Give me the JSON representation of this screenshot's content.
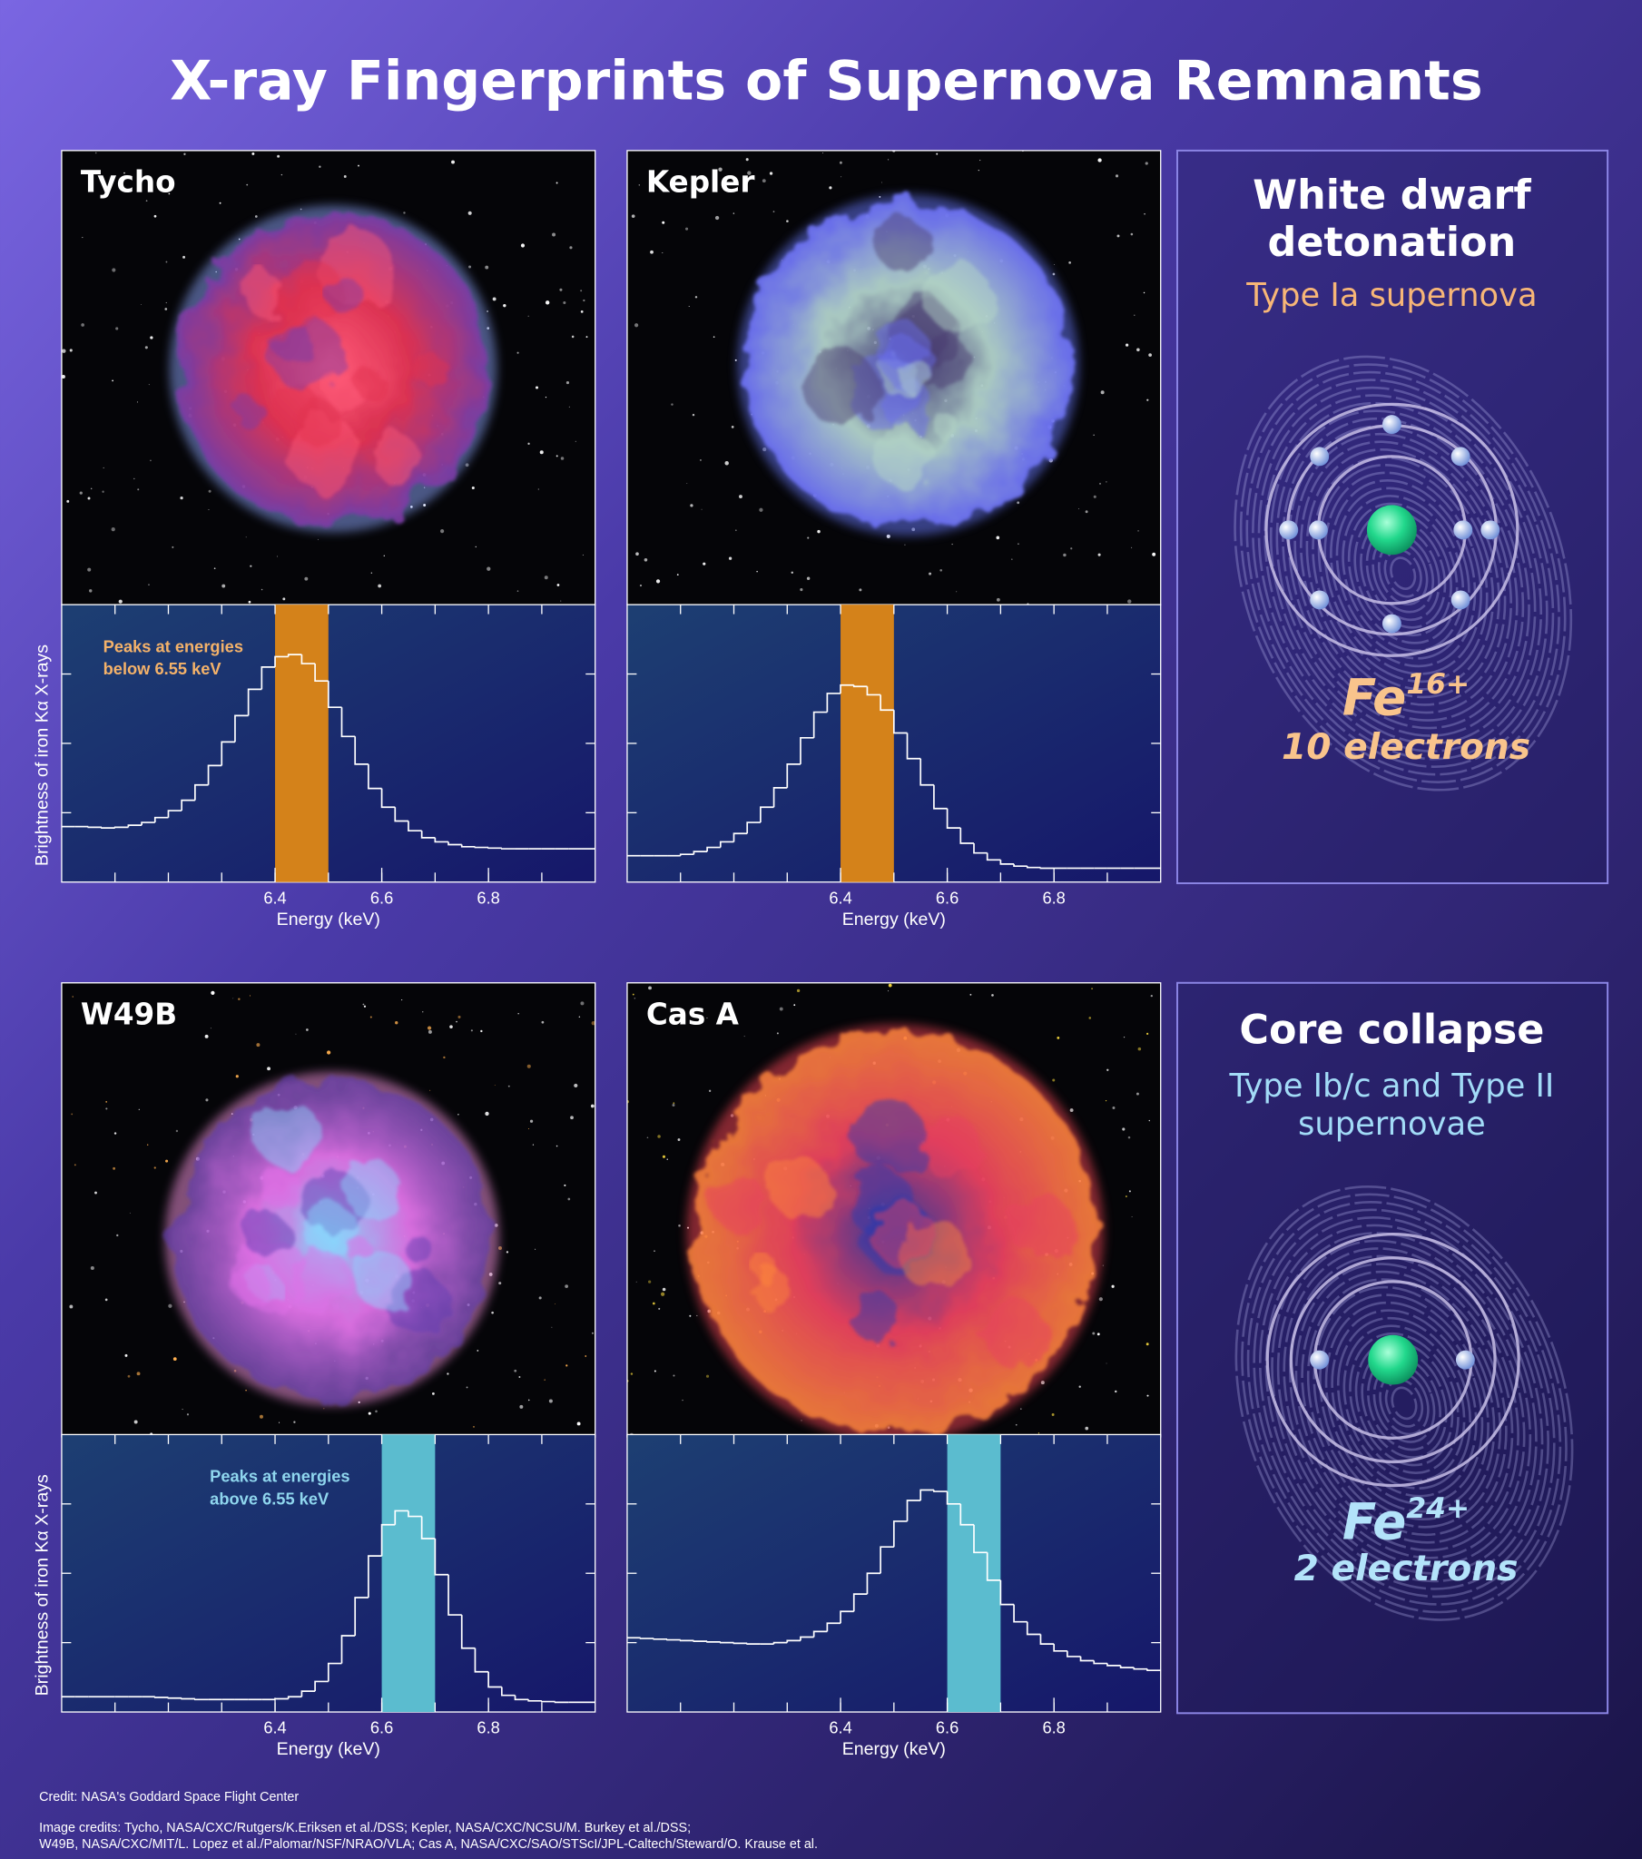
{
  "title": "X-ray Fingerprints of Supernova Remnants",
  "chart_data": [
    {
      "type": "histogram",
      "title": "Tycho",
      "color": "#ffffff",
      "bins": [
        6,
        6.025,
        6.05,
        6.075,
        6.1,
        6.125,
        6.15,
        6.175,
        6.2,
        6.225,
        6.25,
        6.275,
        6.3,
        6.325,
        6.35,
        6.375,
        6.4,
        6.425,
        6.45,
        6.475,
        6.5,
        6.525,
        6.55,
        6.575,
        6.6,
        6.625,
        6.65,
        6.675,
        6.7,
        6.725,
        6.75,
        6.775,
        6.8,
        6.825,
        6.85,
        6.875,
        6.9,
        6.925,
        6.95,
        6.975,
        7
      ],
      "values": [
        0.8,
        0.8,
        0.79,
        0.78,
        0.79,
        0.82,
        0.86,
        0.93,
        1.03,
        1.18,
        1.4,
        1.68,
        2.02,
        2.4,
        2.78,
        3.1,
        3.25,
        3.28,
        3.15,
        2.9,
        2.52,
        2.1,
        1.7,
        1.35,
        1.08,
        0.88,
        0.74,
        0.64,
        0.58,
        0.54,
        0.51,
        0.5,
        0.49,
        0.48,
        0.48,
        0.48,
        0.48,
        0.48,
        0.48,
        0.48
      ],
      "xlim": [
        6,
        7
      ],
      "ylim": [
        0,
        4
      ],
      "xticks": [
        6.4,
        6.6,
        6.8
      ],
      "minor_xticks": [
        6.1,
        6.2,
        6.3,
        6.4,
        6.5,
        6.6,
        6.7,
        6.8,
        6.9
      ],
      "yticks": [
        1,
        2,
        3
      ],
      "highlight": {
        "range": [
          6.4,
          6.5
        ],
        "color": "#d4821a"
      },
      "xlabel": "Energy (keV)",
      "ylabel": "Brightness of iron Kα X-rays",
      "annotation": {
        "lines": [
          "Peaks at energies",
          "below 6.55 keV"
        ],
        "color": "#f4b26a"
      }
    },
    {
      "type": "histogram",
      "title": "Kepler",
      "color": "#ffffff",
      "bins": [
        6,
        6.025,
        6.05,
        6.075,
        6.1,
        6.125,
        6.15,
        6.175,
        6.2,
        6.225,
        6.25,
        6.275,
        6.3,
        6.325,
        6.35,
        6.375,
        6.4,
        6.425,
        6.45,
        6.475,
        6.5,
        6.525,
        6.55,
        6.575,
        6.6,
        6.625,
        6.65,
        6.675,
        6.7,
        6.725,
        6.75,
        6.775,
        6.8,
        6.825,
        6.85,
        6.875,
        6.9,
        6.925,
        6.95,
        6.975,
        7
      ],
      "values": [
        0.38,
        0.38,
        0.38,
        0.38,
        0.4,
        0.44,
        0.5,
        0.58,
        0.7,
        0.86,
        1.08,
        1.36,
        1.7,
        2.08,
        2.45,
        2.72,
        2.84,
        2.82,
        2.7,
        2.48,
        2.15,
        1.78,
        1.4,
        1.06,
        0.78,
        0.56,
        0.42,
        0.32,
        0.26,
        0.23,
        0.21,
        0.2,
        0.2,
        0.2,
        0.2,
        0.2,
        0.2,
        0.2,
        0.2,
        0.2
      ],
      "xlim": [
        6,
        7
      ],
      "ylim": [
        0,
        4
      ],
      "xticks": [
        6.4,
        6.6,
        6.8
      ],
      "minor_xticks": [
        6.1,
        6.2,
        6.3,
        6.4,
        6.5,
        6.6,
        6.7,
        6.8,
        6.9
      ],
      "yticks": [
        1,
        2,
        3
      ],
      "highlight": {
        "range": [
          6.4,
          6.5
        ],
        "color": "#d4821a"
      },
      "xlabel": "Energy (keV)"
    },
    {
      "type": "histogram",
      "title": "W49B",
      "color": "#ffffff",
      "bins": [
        6,
        6.025,
        6.05,
        6.075,
        6.1,
        6.125,
        6.15,
        6.175,
        6.2,
        6.225,
        6.25,
        6.275,
        6.3,
        6.325,
        6.35,
        6.375,
        6.4,
        6.425,
        6.45,
        6.475,
        6.5,
        6.525,
        6.55,
        6.575,
        6.6,
        6.625,
        6.65,
        6.675,
        6.7,
        6.725,
        6.75,
        6.775,
        6.8,
        6.825,
        6.85,
        6.875,
        6.9,
        6.925,
        6.95,
        6.975,
        7
      ],
      "values": [
        0.22,
        0.22,
        0.22,
        0.22,
        0.22,
        0.22,
        0.22,
        0.21,
        0.2,
        0.19,
        0.18,
        0.18,
        0.18,
        0.18,
        0.18,
        0.18,
        0.19,
        0.22,
        0.3,
        0.44,
        0.7,
        1.1,
        1.65,
        2.25,
        2.7,
        2.9,
        2.82,
        2.5,
        1.98,
        1.4,
        0.92,
        0.58,
        0.36,
        0.24,
        0.18,
        0.16,
        0.15,
        0.14,
        0.14,
        0.14
      ],
      "xlim": [
        6,
        7
      ],
      "ylim": [
        0,
        4
      ],
      "xticks": [
        6.4,
        6.6,
        6.8
      ],
      "minor_xticks": [
        6.1,
        6.2,
        6.3,
        6.4,
        6.5,
        6.6,
        6.7,
        6.8,
        6.9
      ],
      "yticks": [
        1,
        2,
        3
      ],
      "highlight": {
        "range": [
          6.6,
          6.7
        ],
        "color": "#5bbccf"
      },
      "xlabel": "Energy (keV)",
      "ylabel": "Brightness of iron Kα X-rays",
      "annotation": {
        "lines": [
          "Peaks at energies",
          "above 6.55 keV"
        ],
        "color": "#8fd6ee"
      }
    },
    {
      "type": "histogram",
      "title": "Cas A",
      "color": "#ffffff",
      "bins": [
        6,
        6.025,
        6.05,
        6.075,
        6.1,
        6.125,
        6.15,
        6.175,
        6.2,
        6.225,
        6.25,
        6.275,
        6.3,
        6.325,
        6.35,
        6.375,
        6.4,
        6.425,
        6.45,
        6.475,
        6.5,
        6.525,
        6.55,
        6.575,
        6.6,
        6.625,
        6.65,
        6.675,
        6.7,
        6.725,
        6.75,
        6.775,
        6.8,
        6.825,
        6.85,
        6.875,
        6.9,
        6.925,
        6.95,
        6.975,
        7
      ],
      "values": [
        1.07,
        1.06,
        1.05,
        1.04,
        1.03,
        1.02,
        1.01,
        1.0,
        0.99,
        0.98,
        0.98,
        1.0,
        1.03,
        1.08,
        1.16,
        1.28,
        1.45,
        1.7,
        2.0,
        2.38,
        2.75,
        3.05,
        3.2,
        3.18,
        3.0,
        2.7,
        2.3,
        1.9,
        1.55,
        1.3,
        1.12,
        0.98,
        0.88,
        0.8,
        0.74,
        0.7,
        0.67,
        0.64,
        0.62,
        0.6
      ],
      "xlim": [
        6,
        7
      ],
      "ylim": [
        0,
        4
      ],
      "xticks": [
        6.4,
        6.6,
        6.8
      ],
      "minor_xticks": [
        6.1,
        6.2,
        6.3,
        6.4,
        6.5,
        6.6,
        6.7,
        6.8,
        6.9
      ],
      "yticks": [
        1,
        2,
        3
      ],
      "highlight": {
        "range": [
          6.6,
          6.7
        ],
        "color": "#5bbccf"
      },
      "xlabel": "Energy (keV)"
    }
  ],
  "panels": [
    {
      "heading": [
        "White dwarf",
        "detonation"
      ],
      "subheading": [
        "Type Ia supernova"
      ],
      "ion": {
        "symbol": "Fe",
        "charge": "16+"
      },
      "electrons": "10 electrons"
    },
    {
      "heading": [
        "Core collapse"
      ],
      "subheading": [
        "Type Ib/c and Type II",
        "supernovae"
      ],
      "ion": {
        "symbol": "Fe",
        "charge": "24+"
      },
      "electrons": "2 electrons"
    }
  ],
  "credits": [
    "Credit: NASA's Goddard Space Flight Center",
    "Image credits: Tycho, NASA/CXC/Rutgers/K.Eriksen et al./DSS; Kepler, NASA/CXC/NCSU/M. Burkey et al./DSS;",
    "W49B, NASA/CXC/MIT/L. Lopez et al./Palomar/NSF/NRAO/VLA; Cas A, NASA/CXC/SAO/STScI/JPL-Caltech/Steward/O. Krause et al."
  ]
}
